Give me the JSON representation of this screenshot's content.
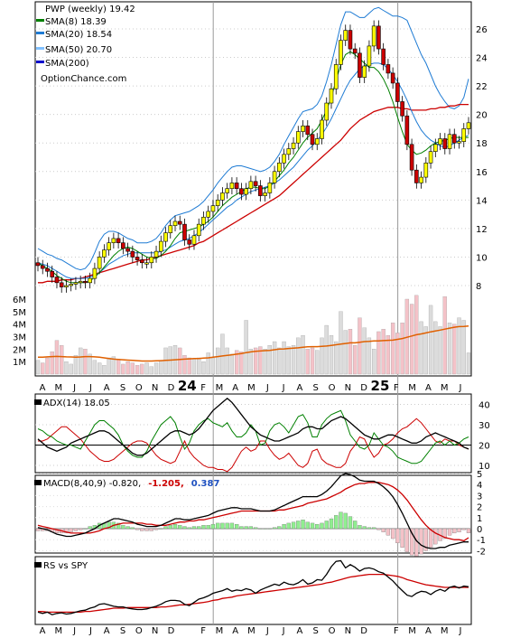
{
  "legend": {
    "ticker_line": "PWP (weekly) 19.42",
    "sma8": "SMA(8) 18.39",
    "sma20": "SMA(20) 18.54",
    "sma50": "SMA(50) 20.70",
    "sma200": "SMA(200)",
    "site": "OptionChance.com"
  },
  "colors": {
    "sma8": "#008000",
    "sma20": "#1e7bd4",
    "sma50": "#80c0ff",
    "sma200": "#0000cc",
    "sma50_line": "#cc0000",
    "candle_up": "#ffff00",
    "candle_down": "#cc0000",
    "vol_up": "#dcdcdc",
    "vol_down": "#f4c2c8",
    "vol_avg": "#e06000",
    "adx": "#000000",
    "di_plus": "#008000",
    "di_minus": "#cc0000",
    "macd": "#000000",
    "macd_signal": "#cc0000",
    "macd_hist_up": "#90ee90",
    "macd_hist_down": "#f4c2c8",
    "macd_val1": "#cc0000",
    "macd_val2": "#1e50c0",
    "rs": "#000000",
    "rs_ma": "#cc0000"
  },
  "x_axis": {
    "labels": [
      "A",
      "M",
      "J",
      "J",
      "A",
      "S",
      "O",
      "N",
      "D",
      "24",
      "F",
      "M",
      "A",
      "M",
      "J",
      "J",
      "A",
      "S",
      "O",
      "N",
      "D",
      "25",
      "F",
      "M",
      "A",
      "M",
      "J"
    ],
    "bold_labels": [
      "24",
      "25"
    ]
  },
  "price_panel": {
    "y_ticks": [
      "26",
      "24",
      "22",
      "20",
      "18",
      "16",
      "14",
      "12",
      "10",
      "8"
    ],
    "volume_ticks": [
      "6M",
      "5M",
      "4M",
      "3M",
      "2M",
      "1M"
    ]
  },
  "adx_panel": {
    "label": "ADX(14) 18.05",
    "y_ticks": [
      "40",
      "30",
      "20",
      "10"
    ]
  },
  "macd_panel": {
    "label_prefix": "MACD(8,40,9) -0.820,",
    "value1": "-1.205,",
    "value2": "0.387",
    "y_ticks": [
      "5",
      "4",
      "3",
      "2",
      "1",
      "0",
      "-1",
      "-2"
    ]
  },
  "rs_panel": {
    "label": "RS vs SPY"
  },
  "chart_data": {
    "type": "line",
    "title": "PWP (weekly) 19.42",
    "price": {
      "ylim": [
        6.5,
        27.5
      ],
      "close": [
        9.4,
        9.2,
        9.0,
        8.6,
        8.2,
        7.9,
        8.0,
        8.1,
        8.2,
        8.3,
        8.2,
        8.5,
        9.2,
        10.0,
        10.5,
        11.0,
        11.3,
        11.0,
        10.6,
        10.4,
        10.0,
        9.8,
        9.6,
        9.6,
        10.0,
        10.4,
        11.1,
        11.7,
        12.2,
        12.5,
        12.3,
        11.2,
        10.9,
        11.5,
        12.3,
        12.8,
        13.2,
        13.6,
        14.0,
        14.5,
        14.8,
        15.2,
        14.8,
        14.4,
        14.8,
        15.3,
        15.0,
        14.3,
        14.5,
        15.2,
        16.0,
        16.6,
        17.2,
        17.6,
        18.0,
        18.8,
        19.2,
        18.6,
        17.9,
        18.3,
        19.6,
        20.8,
        21.8,
        23.5,
        25.2,
        25.9,
        24.6,
        24.3,
        22.6,
        23.4,
        24.8,
        26.2,
        24.6,
        23.5,
        22.9,
        22.2,
        20.9,
        19.9,
        17.9,
        16.1,
        15.2,
        15.6,
        16.6,
        17.4,
        17.9,
        18.3,
        17.6,
        18.6,
        18.0,
        18.1,
        19.0,
        19.42
      ],
      "sma8": [
        9.6,
        9.4,
        9.2,
        9.0,
        8.7,
        8.5,
        8.3,
        8.2,
        8.2,
        8.2,
        8.2,
        8.3,
        8.6,
        8.9,
        9.3,
        9.7,
        10.1,
        10.4,
        10.6,
        10.7,
        10.6,
        10.4,
        10.2,
        10.0,
        9.9,
        9.9,
        10.1,
        10.4,
        10.8,
        11.3,
        11.7,
        11.8,
        11.9,
        12.0,
        12.1,
        12.3,
        12.5,
        12.8,
        13.2,
        13.6,
        13.9,
        14.2,
        14.4,
        14.6,
        14.8,
        14.9,
        14.9,
        14.8,
        14.8,
        15.0,
        15.3,
        15.7,
        16.1,
        16.6,
        17.0,
        17.5,
        18.0,
        18.4,
        18.7,
        19.0,
        19.6,
        20.3,
        21.2,
        22.4,
        23.5,
        24.2,
        24.4,
        24.2,
        23.9,
        23.6,
        23.3,
        23.3,
        23.0,
        22.5,
        21.8,
        20.9,
        19.8,
        18.8,
        17.9,
        17.5,
        17.2,
        17.3,
        17.5,
        17.8,
        18.0,
        18.1,
        18.2,
        18.3,
        18.4,
        18.39,
        18.39,
        18.39
      ],
      "sma20": [
        9.6,
        9.5,
        9.4,
        9.2,
        9.0,
        8.8,
        8.6,
        8.5,
        8.5,
        8.5,
        8.5,
        8.6,
        8.7,
        8.9,
        9.2,
        9.5,
        9.7,
        9.9,
        10.1,
        10.2,
        10.3,
        10.3,
        10.3,
        10.3,
        10.3,
        10.3,
        10.4,
        10.5,
        10.7,
        10.9,
        11.1,
        11.2,
        11.3,
        11.5,
        11.7,
        12.0,
        12.3,
        12.6,
        12.9,
        13.2,
        13.5,
        13.7,
        14.0,
        14.2,
        14.4,
        14.6,
        14.7,
        14.8,
        14.9,
        15.0,
        15.2,
        15.4,
        15.7,
        16.0,
        16.3,
        16.7,
        17.1,
        17.5,
        17.8,
        18.2,
        18.6,
        19.1,
        19.7,
        20.4,
        21.1,
        21.8,
        22.4,
        22.8,
        23.2,
        23.4,
        23.5,
        23.6,
        23.6,
        23.5,
        23.2,
        22.8,
        22.3,
        21.7,
        21.0,
        20.2,
        19.5,
        18.9,
        18.5,
        18.2,
        18.0,
        17.8,
        17.7,
        17.8,
        18.0,
        18.2,
        18.4,
        18.54
      ],
      "sma50": [
        8.2,
        8.2,
        8.3,
        8.3,
        8.3,
        8.4,
        8.4,
        8.4,
        8.5,
        8.5,
        8.6,
        8.7,
        8.8,
        8.9,
        9.0,
        9.1,
        9.2,
        9.3,
        9.4,
        9.5,
        9.6,
        9.7,
        9.8,
        9.8,
        9.9,
        10.0,
        10.1,
        10.2,
        10.3,
        10.4,
        10.5,
        10.6,
        10.7,
        10.8,
        11.0,
        11.1,
        11.3,
        11.5,
        11.7,
        11.9,
        12.1,
        12.3,
        12.5,
        12.7,
        12.9,
        13.1,
        13.3,
        13.5,
        13.7,
        13.9,
        14.1,
        14.3,
        14.6,
        14.9,
        15.2,
        15.5,
        15.8,
        16.1,
        16.4,
        16.7,
        17.0,
        17.3,
        17.6,
        17.9,
        18.2,
        18.6,
        19.0,
        19.3,
        19.6,
        19.8,
        20.0,
        20.2,
        20.3,
        20.4,
        20.5,
        20.5,
        20.5,
        20.4,
        20.4,
        20.3,
        20.3,
        20.3,
        20.3,
        20.4,
        20.4,
        20.5,
        20.5,
        20.6,
        20.6,
        20.7,
        20.7,
        20.7
      ],
      "bb_upper": [
        10.6,
        10.4,
        10.2,
        10.1,
        9.9,
        9.8,
        9.6,
        9.4,
        9.2,
        9.1,
        9.2,
        9.6,
        10.3,
        11.1,
        11.6,
        11.8,
        11.8,
        11.7,
        11.5,
        11.3,
        11.2,
        11.0,
        11.0,
        11.0,
        11.1,
        11.3,
        11.7,
        12.2,
        12.6,
        12.9,
        13.0,
        13.1,
        13.2,
        13.4,
        13.6,
        13.9,
        14.3,
        14.7,
        15.2,
        15.6,
        16.0,
        16.3,
        16.4,
        16.4,
        16.3,
        16.2,
        16.1,
        16.0,
        16.1,
        16.3,
        16.7,
        17.2,
        17.9,
        18.5,
        19.1,
        19.7,
        20.2,
        20.3,
        20.4,
        20.7,
        21.3,
        22.3,
        23.5,
        24.9,
        26.3,
        27.2,
        27.2,
        27.0,
        26.8,
        26.8,
        27.1,
        27.4,
        27.5,
        27.3,
        27.1,
        26.9,
        26.9,
        26.8,
        26.6,
        25.8,
        25.0,
        24.2,
        23.6,
        22.8,
        22.0,
        21.4,
        20.9,
        20.5,
        20.4,
        20.6,
        21.2,
        22.5
      ]
    },
    "volume": {
      "ylim_millions": [
        0,
        6.6
      ],
      "values_millions": [
        1.1,
        0.9,
        1.3,
        1.8,
        2.7,
        2.3,
        1.0,
        0.8,
        1.5,
        2.1,
        2.0,
        1.6,
        1.1,
        0.9,
        0.7,
        1.3,
        1.4,
        1.2,
        0.8,
        1.0,
        0.9,
        0.7,
        0.8,
        0.9,
        0.6,
        0.9,
        1.1,
        2.1,
        2.2,
        2.3,
        2.1,
        1.5,
        1.3,
        1.2,
        1.3,
        1.0,
        1.7,
        1.3,
        2.1,
        3.2,
        2.1,
        1.6,
        1.9,
        1.8,
        4.3,
        2.0,
        2.1,
        2.2,
        2.0,
        2.3,
        2.6,
        2.1,
        2.6,
        2.2,
        2.3,
        2.9,
        3.1,
        2.0,
        2.1,
        1.9,
        2.9,
        3.9,
        3.1,
        2.6,
        5.0,
        3.5,
        3.6,
        2.3,
        4.5,
        3.7,
        2.9,
        2.0,
        3.4,
        3.6,
        3.1,
        4.1,
        3.3,
        4.1,
        6.0,
        5.6,
        6.3,
        4.2,
        3.8,
        5.5,
        4.2,
        3.8,
        6.2,
        4.1,
        4.0,
        4.5,
        4.3,
        1.7
      ],
      "avg_millions": [
        1.35,
        1.35,
        1.38,
        1.4,
        1.42,
        1.4,
        1.38,
        1.37,
        1.36,
        1.37,
        1.4,
        1.4,
        1.38,
        1.36,
        1.3,
        1.25,
        1.2,
        1.18,
        1.15,
        1.12,
        1.1,
        1.08,
        1.05,
        1.05,
        1.05,
        1.06,
        1.08,
        1.1,
        1.12,
        1.15,
        1.18,
        1.2,
        1.22,
        1.24,
        1.25,
        1.28,
        1.3,
        1.35,
        1.4,
        1.45,
        1.5,
        1.55,
        1.6,
        1.65,
        1.72,
        1.78,
        1.82,
        1.85,
        1.88,
        1.9,
        1.95,
        2.0,
        2.02,
        2.05,
        2.08,
        2.1,
        2.15,
        2.18,
        2.2,
        2.2,
        2.22,
        2.25,
        2.3,
        2.35,
        2.4,
        2.45,
        2.5,
        2.5,
        2.55,
        2.6,
        2.62,
        2.65,
        2.65,
        2.68,
        2.7,
        2.72,
        2.78,
        2.85,
        2.95,
        3.05,
        3.15,
        3.22,
        3.3,
        3.38,
        3.45,
        3.52,
        3.6,
        3.68,
        3.75,
        3.8,
        3.82,
        3.85
      ]
    },
    "adx": {
      "ylim": [
        5,
        45
      ],
      "adx": [
        23,
        21,
        19,
        18,
        17,
        18,
        19,
        21,
        22,
        23,
        24,
        25,
        26,
        27,
        27,
        26,
        24,
        22,
        20,
        18,
        16,
        15,
        15,
        16,
        18,
        20,
        22,
        24,
        26,
        27,
        27,
        26,
        25,
        26,
        28,
        31,
        34,
        37,
        39,
        41,
        43,
        41,
        38,
        35,
        32,
        29,
        27,
        25,
        24,
        23,
        22,
        22,
        23,
        24,
        25,
        26,
        28,
        29,
        29,
        28,
        28,
        30,
        32,
        33,
        34,
        33,
        31,
        29,
        27,
        25,
        24,
        23,
        23,
        24,
        25,
        25,
        24,
        23,
        22,
        21,
        21,
        22,
        24,
        25,
        26,
        25,
        24,
        23,
        22,
        21,
        19,
        18.05
      ],
      "di_plus": [
        28,
        27,
        25,
        24,
        22,
        21,
        20,
        20,
        19,
        18,
        22,
        26,
        30,
        32,
        32,
        30,
        28,
        25,
        20,
        17,
        15,
        14,
        14,
        17,
        22,
        26,
        30,
        32,
        34,
        31,
        24,
        18,
        21,
        27,
        30,
        32,
        33,
        31,
        30,
        29,
        31,
        27,
        24,
        24,
        26,
        30,
        27,
        20,
        21,
        27,
        30,
        31,
        29,
        26,
        30,
        34,
        35,
        31,
        24,
        24,
        30,
        33,
        35,
        36,
        37,
        32,
        25,
        22,
        19,
        18,
        20,
        26,
        23,
        20,
        19,
        17,
        14,
        13,
        12,
        11,
        11,
        12,
        15,
        18,
        21,
        22,
        20,
        22,
        20,
        21,
        23,
        24
      ],
      "di_minus": [
        22,
        22,
        23,
        25,
        27,
        29,
        29,
        27,
        25,
        23,
        20,
        17,
        15,
        13,
        12,
        12,
        13,
        15,
        17,
        19,
        21,
        22,
        22,
        21,
        18,
        15,
        13,
        12,
        11,
        12,
        17,
        22,
        17,
        14,
        12,
        10,
        9,
        9,
        8,
        8,
        7,
        9,
        13,
        17,
        19,
        17,
        18,
        22,
        22,
        18,
        15,
        13,
        14,
        16,
        13,
        10,
        9,
        11,
        17,
        18,
        13,
        11,
        10,
        9,
        9,
        11,
        17,
        20,
        24,
        23,
        18,
        14,
        16,
        20,
        21,
        23,
        26,
        28,
        29,
        31,
        33,
        31,
        28,
        25,
        22,
        21,
        23,
        22,
        22,
        20,
        19,
        18
      ]
    },
    "macd": {
      "ylim": [
        -2.6,
        5.4
      ],
      "macd": [
        0.1,
        0.0,
        -0.1,
        -0.3,
        -0.5,
        -0.6,
        -0.7,
        -0.7,
        -0.6,
        -0.5,
        -0.4,
        -0.2,
        0.0,
        0.3,
        0.5,
        0.7,
        0.9,
        0.9,
        0.8,
        0.7,
        0.6,
        0.4,
        0.3,
        0.2,
        0.2,
        0.2,
        0.3,
        0.5,
        0.7,
        0.9,
        0.9,
        0.8,
        0.8,
        0.9,
        1.0,
        1.1,
        1.2,
        1.4,
        1.6,
        1.7,
        1.8,
        1.9,
        1.9,
        1.8,
        1.8,
        1.8,
        1.7,
        1.6,
        1.6,
        1.6,
        1.7,
        1.9,
        2.1,
        2.3,
        2.5,
        2.7,
        2.9,
        2.9,
        2.9,
        2.9,
        3.1,
        3.4,
        3.8,
        4.3,
        4.8,
        5.0,
        4.9,
        4.7,
        4.4,
        4.3,
        4.3,
        4.3,
        4.1,
        3.8,
        3.4,
        2.9,
        2.2,
        1.4,
        0.5,
        -0.4,
        -1.1,
        -1.5,
        -1.7,
        -1.8,
        -1.8,
        -1.7,
        -1.7,
        -1.5,
        -1.4,
        -1.3,
        -1.2,
        -1.205
      ],
      "signal": [
        0.3,
        0.2,
        0.1,
        0.0,
        -0.1,
        -0.2,
        -0.3,
        -0.4,
        -0.4,
        -0.4,
        -0.4,
        -0.4,
        -0.3,
        -0.2,
        0.0,
        0.1,
        0.3,
        0.4,
        0.5,
        0.5,
        0.5,
        0.5,
        0.5,
        0.4,
        0.4,
        0.3,
        0.3,
        0.3,
        0.4,
        0.5,
        0.6,
        0.6,
        0.7,
        0.7,
        0.8,
        0.8,
        0.9,
        1.0,
        1.1,
        1.2,
        1.3,
        1.4,
        1.5,
        1.6,
        1.6,
        1.6,
        1.6,
        1.6,
        1.6,
        1.6,
        1.6,
        1.7,
        1.7,
        1.8,
        1.9,
        2.0,
        2.1,
        2.3,
        2.4,
        2.5,
        2.6,
        2.7,
        2.9,
        3.1,
        3.3,
        3.6,
        3.8,
        4.0,
        4.1,
        4.1,
        4.2,
        4.2,
        4.2,
        4.1,
        4.0,
        3.8,
        3.5,
        3.1,
        2.6,
        2.0,
        1.4,
        0.8,
        0.3,
        -0.1,
        -0.4,
        -0.6,
        -0.8,
        -0.9,
        -1.0,
        -1.0,
        -1.1,
        -0.82
      ]
    },
    "rs": {
      "ylim": [
        0,
        1
      ],
      "rs": [
        0.12,
        0.1,
        0.12,
        0.08,
        0.1,
        0.11,
        0.09,
        0.1,
        0.12,
        0.14,
        0.15,
        0.18,
        0.2,
        0.24,
        0.25,
        0.23,
        0.21,
        0.2,
        0.2,
        0.18,
        0.17,
        0.16,
        0.16,
        0.17,
        0.19,
        0.21,
        0.24,
        0.28,
        0.3,
        0.3,
        0.29,
        0.24,
        0.22,
        0.27,
        0.32,
        0.34,
        0.37,
        0.41,
        0.43,
        0.45,
        0.48,
        0.44,
        0.46,
        0.45,
        0.48,
        0.46,
        0.41,
        0.46,
        0.49,
        0.52,
        0.55,
        0.53,
        0.58,
        0.55,
        0.54,
        0.57,
        0.62,
        0.55,
        0.57,
        0.62,
        0.61,
        0.7,
        0.82,
        0.9,
        0.91,
        0.8,
        0.85,
        0.81,
        0.75,
        0.79,
        0.8,
        0.78,
        0.74,
        0.72,
        0.66,
        0.6,
        0.52,
        0.45,
        0.38,
        0.36,
        0.41,
        0.44,
        0.43,
        0.39,
        0.44,
        0.47,
        0.44,
        0.5,
        0.52,
        0.49,
        0.52,
        0.51
      ],
      "rs_ma": [
        0.13,
        0.13,
        0.12,
        0.12,
        0.12,
        0.12,
        0.12,
        0.12,
        0.12,
        0.12,
        0.13,
        0.13,
        0.14,
        0.15,
        0.16,
        0.17,
        0.18,
        0.18,
        0.18,
        0.19,
        0.19,
        0.19,
        0.19,
        0.19,
        0.19,
        0.19,
        0.2,
        0.2,
        0.21,
        0.22,
        0.23,
        0.23,
        0.24,
        0.25,
        0.26,
        0.27,
        0.28,
        0.3,
        0.31,
        0.33,
        0.34,
        0.35,
        0.37,
        0.38,
        0.39,
        0.4,
        0.41,
        0.42,
        0.43,
        0.44,
        0.45,
        0.46,
        0.47,
        0.48,
        0.49,
        0.5,
        0.51,
        0.52,
        0.53,
        0.54,
        0.55,
        0.57,
        0.58,
        0.6,
        0.62,
        0.64,
        0.66,
        0.67,
        0.68,
        0.69,
        0.7,
        0.7,
        0.7,
        0.7,
        0.69,
        0.68,
        0.67,
        0.65,
        0.62,
        0.6,
        0.58,
        0.56,
        0.54,
        0.53,
        0.52,
        0.51,
        0.5,
        0.5,
        0.5,
        0.5,
        0.5,
        0.5
      ]
    }
  }
}
